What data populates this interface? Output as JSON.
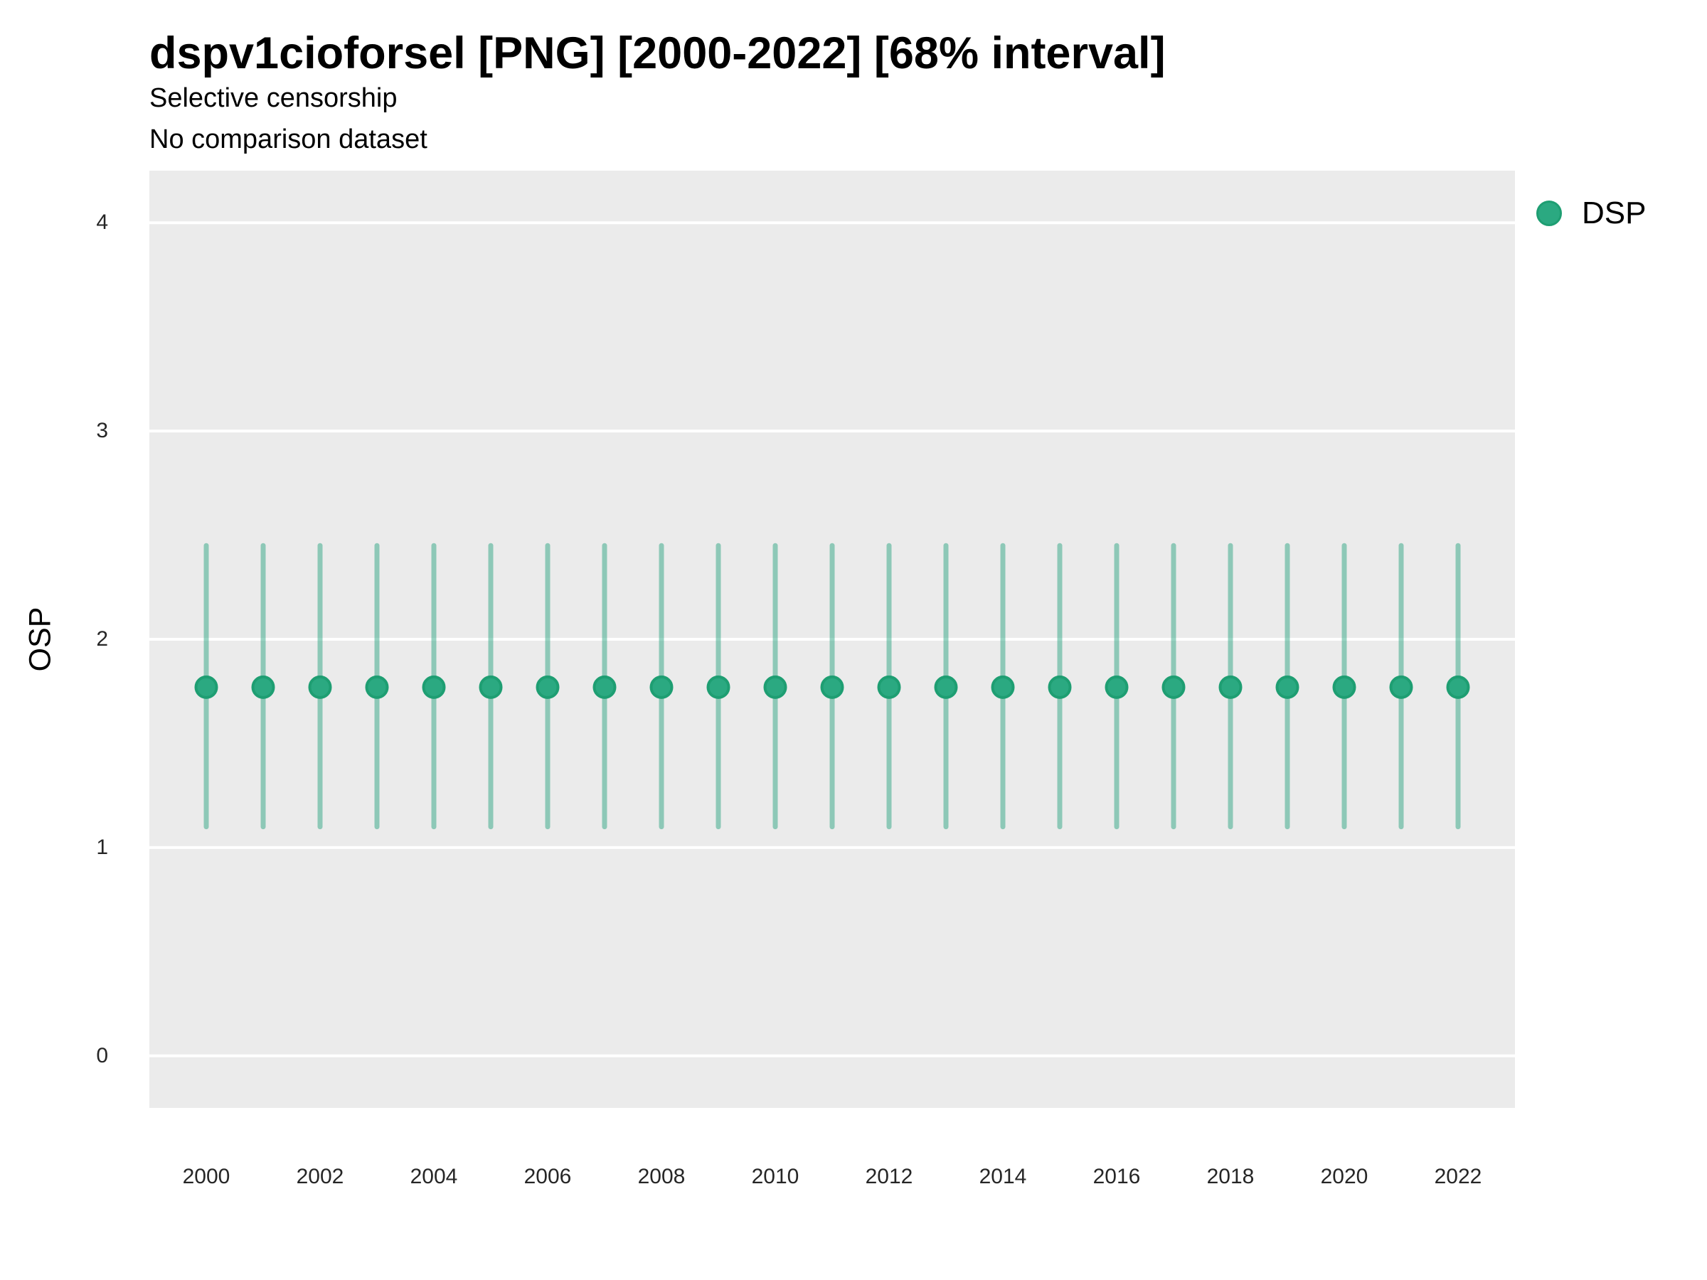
{
  "header": {
    "title": "dspv1cioforsel [PNG] [2000-2022] [68% interval]",
    "subtitle1": "Selective censorship",
    "subtitle2": "No comparison dataset"
  },
  "legend": {
    "label": "DSP",
    "marker": "circle-icon"
  },
  "colors": {
    "point_fill": "#2BA981",
    "point_stroke": "#1E9E72",
    "interval_line": "#1B9E77",
    "interval_opacity": 0.45,
    "panel_background": "#EBEBEB",
    "gridline": "#FFFFFF",
    "tick_text": "#262626"
  },
  "chart_data": {
    "type": "pointrange",
    "title": "dspv1cioforsel [PNG] [2000-2022] [68% interval]",
    "subtitle": [
      "Selective censorship",
      "No comparison dataset"
    ],
    "xlabel": "",
    "ylabel": "OSP",
    "interval_level": "68%",
    "legend_position": "right",
    "grid": "major-horizontal-only",
    "ylim": [
      -0.25,
      4.25
    ],
    "yticks": [
      0,
      1,
      2,
      3,
      4
    ],
    "xticks": [
      2000,
      2002,
      2004,
      2006,
      2008,
      2010,
      2012,
      2014,
      2016,
      2018,
      2020,
      2022
    ],
    "x": [
      2000,
      2001,
      2002,
      2003,
      2004,
      2005,
      2006,
      2007,
      2008,
      2009,
      2010,
      2011,
      2012,
      2013,
      2014,
      2015,
      2016,
      2017,
      2018,
      2019,
      2020,
      2021,
      2022
    ],
    "series": [
      {
        "name": "DSP",
        "estimate": [
          1.77,
          1.77,
          1.77,
          1.77,
          1.77,
          1.77,
          1.77,
          1.77,
          1.77,
          1.77,
          1.77,
          1.77,
          1.77,
          1.77,
          1.77,
          1.77,
          1.77,
          1.77,
          1.77,
          1.77,
          1.77,
          1.77,
          1.77
        ],
        "lower": [
          1.1,
          1.1,
          1.1,
          1.1,
          1.1,
          1.1,
          1.1,
          1.1,
          1.1,
          1.1,
          1.1,
          1.1,
          1.1,
          1.1,
          1.1,
          1.1,
          1.1,
          1.1,
          1.1,
          1.1,
          1.1,
          1.1,
          1.1
        ],
        "upper": [
          2.45,
          2.45,
          2.45,
          2.45,
          2.45,
          2.45,
          2.45,
          2.45,
          2.45,
          2.45,
          2.45,
          2.45,
          2.45,
          2.45,
          2.45,
          2.45,
          2.45,
          2.45,
          2.45,
          2.45,
          2.45,
          2.45,
          2.45
        ]
      }
    ]
  }
}
